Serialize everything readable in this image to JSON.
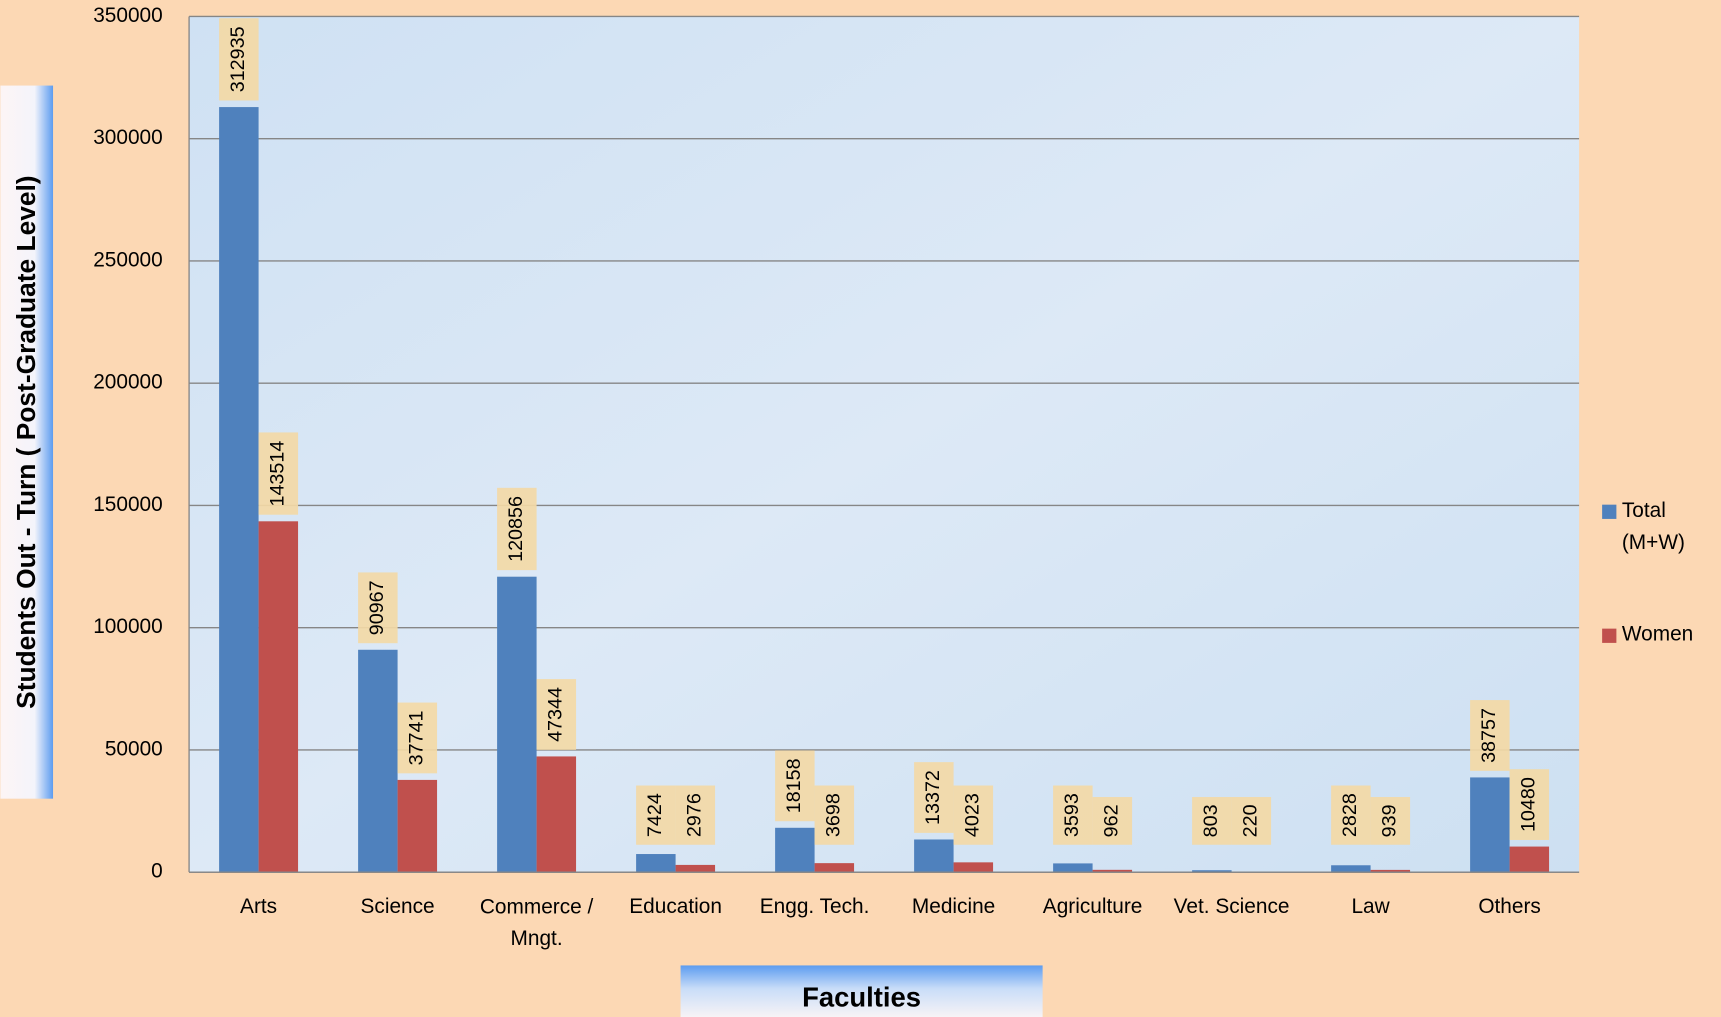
{
  "chart_data": {
    "type": "bar",
    "x_label": "Faculties",
    "y_label": "Students  Out - Turn ( Post-Graduate Level)",
    "categories": [
      "Arts",
      "Science",
      "Commerce / Mngt.",
      "Education",
      "Engg. Tech.",
      "Medicine",
      "Agriculture",
      "Vet. Science",
      "Law",
      "Others"
    ],
    "series": [
      {
        "name": "Total (M+W)",
        "color": "#4f81bd",
        "values": [
          312935,
          90967,
          120856,
          7424,
          18158,
          13372,
          3593,
          803,
          2828,
          38757
        ]
      },
      {
        "name": "Women",
        "color": "#c0504d",
        "values": [
          143514,
          37741,
          47344,
          2976,
          3698,
          4023,
          962,
          220,
          939,
          10480
        ]
      }
    ],
    "ylim": [
      0,
      350000
    ],
    "yticks": [
      0,
      50000,
      100000,
      150000,
      200000,
      250000,
      300000,
      350000
    ],
    "grid": true,
    "legend": "right"
  }
}
